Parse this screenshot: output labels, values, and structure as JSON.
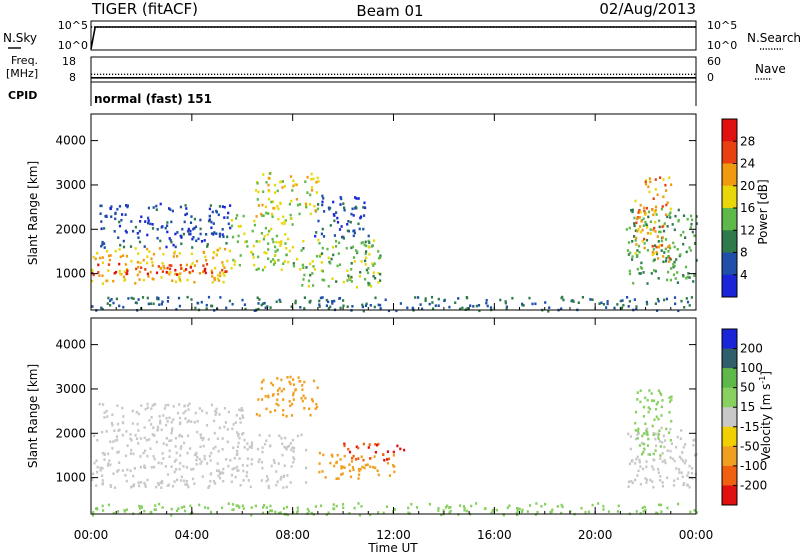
{
  "header": {
    "station": "TIGER (fitACF)",
    "beam": "Beam 01",
    "date": "02/Aug/2013"
  },
  "chart_data": [
    {
      "id": "nsky-nsearch",
      "type": "line",
      "left_label": "N.Sky",
      "right_label": "N.Search",
      "left_ticks": [
        "10^5",
        "10^0"
      ],
      "right_ticks": [
        "10^5",
        "10^0"
      ],
      "series": [
        {
          "name": "N.Sky",
          "style": "solid",
          "x": [
            "00:00",
            "00:10",
            "01:00",
            "24:00"
          ],
          "values": [
            1,
            100000,
            100000,
            100000
          ]
        },
        {
          "name": "N.Search",
          "style": "dotted",
          "x": [
            "00:00",
            "24:00"
          ],
          "values": [
            100000,
            100000
          ]
        }
      ]
    },
    {
      "id": "freq-nave",
      "type": "line",
      "left_label_1": "Freq.",
      "left_label_2": "[MHz]",
      "left_ticks": [
        "18",
        "8"
      ],
      "right_label": "Nave",
      "right_ticks": [
        "60",
        "0"
      ],
      "series": [
        {
          "name": "Freq",
          "style": "solid",
          "x": [
            "00:00",
            "24:00"
          ],
          "values": [
            9.7,
            9.7
          ]
        },
        {
          "name": "Nave",
          "style": "dotted",
          "x": [
            "00:00",
            "24:00"
          ],
          "values": [
            21,
            21
          ]
        }
      ]
    },
    {
      "id": "cpid",
      "type": "table",
      "label": "CPID",
      "text": "normal (fast) 151"
    },
    {
      "id": "power",
      "type": "heatmap",
      "ylabel": "Slant Range [km]",
      "yticks": [
        "1000",
        "2000",
        "3000",
        "4000"
      ],
      "ylim": [
        180,
        4600
      ],
      "colorbar": {
        "label": "Power [dB]",
        "ticks": [
          "4",
          "8",
          "12",
          "16",
          "20",
          "24",
          "28"
        ],
        "colors": [
          "#1a24d8",
          "#1f4fa8",
          "#2f7a4a",
          "#5fb84a",
          "#e8d80a",
          "#f09a10",
          "#e84010",
          "#e01010"
        ]
      },
      "bands": [
        {
          "t0": 0,
          "t1": 5.5,
          "r0": 800,
          "r1": 1600,
          "value": 20
        },
        {
          "t0": 0,
          "t1": 5.5,
          "r0": 1000,
          "r1": 1250,
          "value": 28
        },
        {
          "t0": 0.3,
          "t1": 5.5,
          "r0": 1600,
          "r1": 2600,
          "value": 6
        },
        {
          "t0": 5.5,
          "t1": 8,
          "r0": 1100,
          "r1": 2400,
          "value": 16
        },
        {
          "t0": 6.5,
          "t1": 9,
          "r0": 2300,
          "r1": 3300,
          "value": 18
        },
        {
          "t0": 8,
          "t1": 11.5,
          "r0": 700,
          "r1": 1800,
          "value": 14
        },
        {
          "t0": 8.8,
          "t1": 11,
          "r0": 1800,
          "r1": 2800,
          "value": 6
        },
        {
          "t0": 21.2,
          "t1": 24,
          "r0": 800,
          "r1": 2500,
          "value": 12
        },
        {
          "t0": 21.5,
          "t1": 23,
          "r0": 1300,
          "r1": 3200,
          "value": 22
        },
        {
          "t0": 0,
          "t1": 24,
          "r0": 180,
          "r1": 500,
          "value": 8
        }
      ]
    },
    {
      "id": "velocity",
      "type": "heatmap",
      "ylabel": "Slant Range [km]",
      "yticks": [
        "1000",
        "2000",
        "3000",
        "4000"
      ],
      "ylim": [
        180,
        4600
      ],
      "colorbar": {
        "label": "Velocity [m s",
        "label_sup": "-1",
        "label_end": "]",
        "ticks": [
          "200",
          "100",
          "50",
          "15",
          "-15",
          "-50",
          "-100",
          "-200"
        ],
        "colors": [
          "#1a24d8",
          "#2f5f6a",
          "#5fb84a",
          "#88d060",
          "#c8c8c8",
          "#f0d000",
          "#f0a020",
          "#f06010",
          "#e01010"
        ]
      },
      "bands": [
        {
          "t0": 0,
          "t1": 8.5,
          "r0": 800,
          "r1": 2000,
          "value": 0
        },
        {
          "t0": 0.3,
          "t1": 6,
          "r0": 2000,
          "r1": 2700,
          "value": 0
        },
        {
          "t0": 6.5,
          "t1": 9,
          "r0": 2400,
          "r1": 3300,
          "value": -80
        },
        {
          "t0": 9,
          "t1": 12,
          "r0": 1000,
          "r1": 1600,
          "value": -60
        },
        {
          "t0": 10,
          "t1": 12.5,
          "r0": 1400,
          "r1": 1800,
          "value": -200
        },
        {
          "t0": 21.2,
          "t1": 24,
          "r0": 800,
          "r1": 2200,
          "value": 0
        },
        {
          "t0": 21.5,
          "t1": 23,
          "r0": 1500,
          "r1": 3000,
          "value": 40
        },
        {
          "t0": 0,
          "t1": 24,
          "r0": 180,
          "r1": 450,
          "value": 30
        }
      ],
      "xticks": [
        "00:00",
        "04:00",
        "08:00",
        "12:00",
        "16:00",
        "20:00",
        "00:00"
      ],
      "xlabel": "Time UT"
    }
  ]
}
